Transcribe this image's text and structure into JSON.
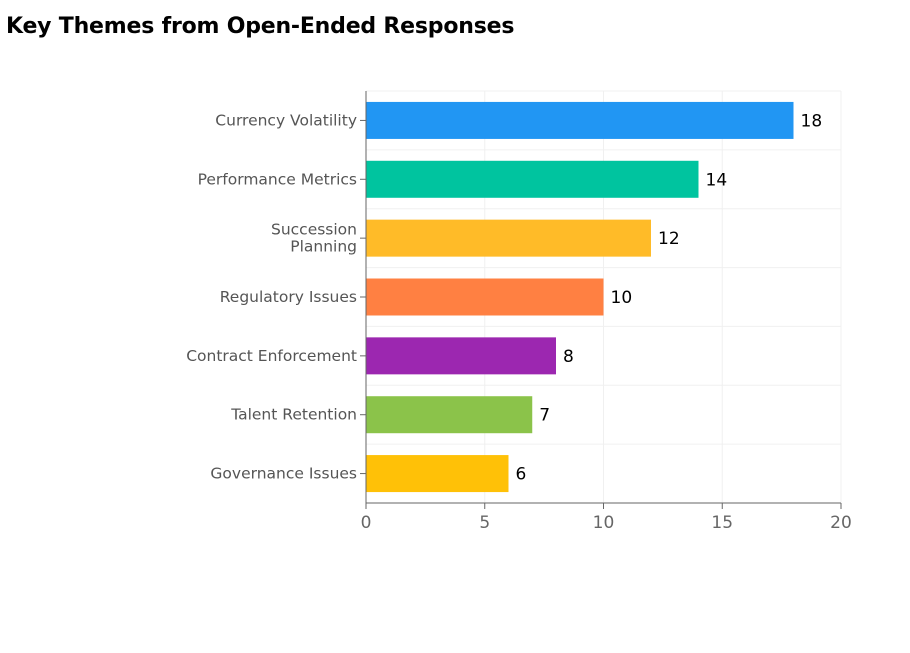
{
  "page": {
    "title": "Key Themes from Open-Ended Responses"
  },
  "chart_data": {
    "type": "bar",
    "orientation": "horizontal",
    "title": "Key Themes from Open-Ended Responses",
    "xlabel": "",
    "ylabel": "",
    "categories": [
      [
        "Currency Volatility"
      ],
      [
        "Performance Metrics"
      ],
      [
        "Succession",
        "Planning"
      ],
      [
        "Regulatory Issues"
      ],
      [
        "Contract Enforcement"
      ],
      [
        "Talent Retention"
      ],
      [
        "Governance Issues"
      ]
    ],
    "values": [
      18,
      14,
      12,
      10,
      8,
      7,
      6
    ],
    "colors": [
      "#2196F3",
      "#00C49F",
      "#FFBB28",
      "#FF8042",
      "#9C27B0",
      "#8BC34A",
      "#FFC107"
    ],
    "data_labels": [
      "18",
      "14",
      "12",
      "10",
      "8",
      "7",
      "6"
    ],
    "xlim": [
      0,
      20
    ],
    "x_ticks": [
      0,
      5,
      10,
      15,
      20
    ],
    "x_tick_labels": [
      "0",
      "5",
      "10",
      "15",
      "20"
    ],
    "grid": true,
    "legend": "none"
  }
}
